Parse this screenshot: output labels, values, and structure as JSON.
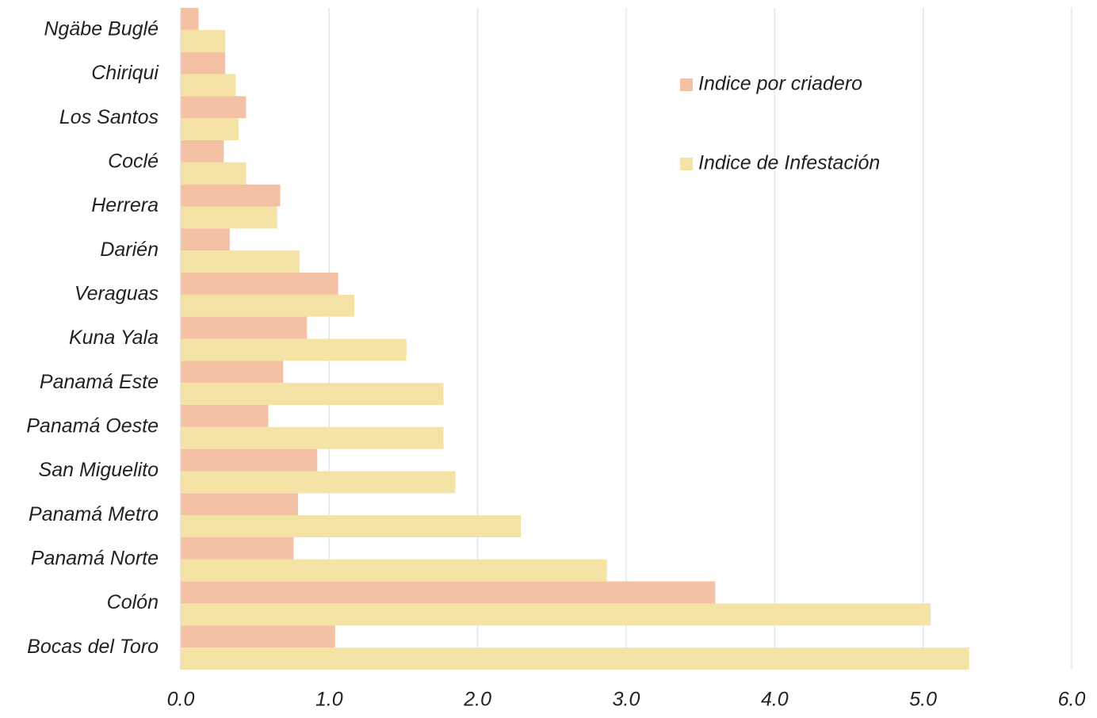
{
  "chart_data": {
    "type": "barh",
    "categories": [
      "Ngäbe Buglé",
      "Chiriqui",
      "Los Santos",
      "Coclé",
      "Herrera",
      "Darién",
      "Veraguas",
      "Kuna Yala",
      "Panamá Este",
      "Panamá Oeste",
      "San Miguelito",
      "Panamá Metro",
      "Panamá Norte",
      "Colón",
      "Bocas del Toro"
    ],
    "series": [
      {
        "name": "Indice por criadero",
        "color": "#f5c1a5",
        "values": [
          0.12,
          0.3,
          0.44,
          0.29,
          0.67,
          0.33,
          1.06,
          0.85,
          0.69,
          0.59,
          0.92,
          0.79,
          0.76,
          3.6,
          1.04
        ]
      },
      {
        "name": "Indice de Infestación",
        "color": "#f5e3a5",
        "values": [
          0.3,
          0.37,
          0.39,
          0.44,
          0.65,
          0.8,
          1.17,
          1.52,
          1.77,
          1.77,
          1.85,
          2.29,
          2.87,
          5.05,
          5.31
        ]
      }
    ],
    "xlim": [
      0,
      6
    ],
    "xticks": [
      {
        "value": 0,
        "label": "0.0"
      },
      {
        "value": 1,
        "label": "1.0"
      },
      {
        "value": 2,
        "label": "2.0"
      },
      {
        "value": 3,
        "label": "3.0"
      },
      {
        "value": 4,
        "label": "4.0"
      },
      {
        "value": 5,
        "label": "5.0"
      },
      {
        "value": 6,
        "label": "6.0"
      }
    ],
    "grid": true
  }
}
